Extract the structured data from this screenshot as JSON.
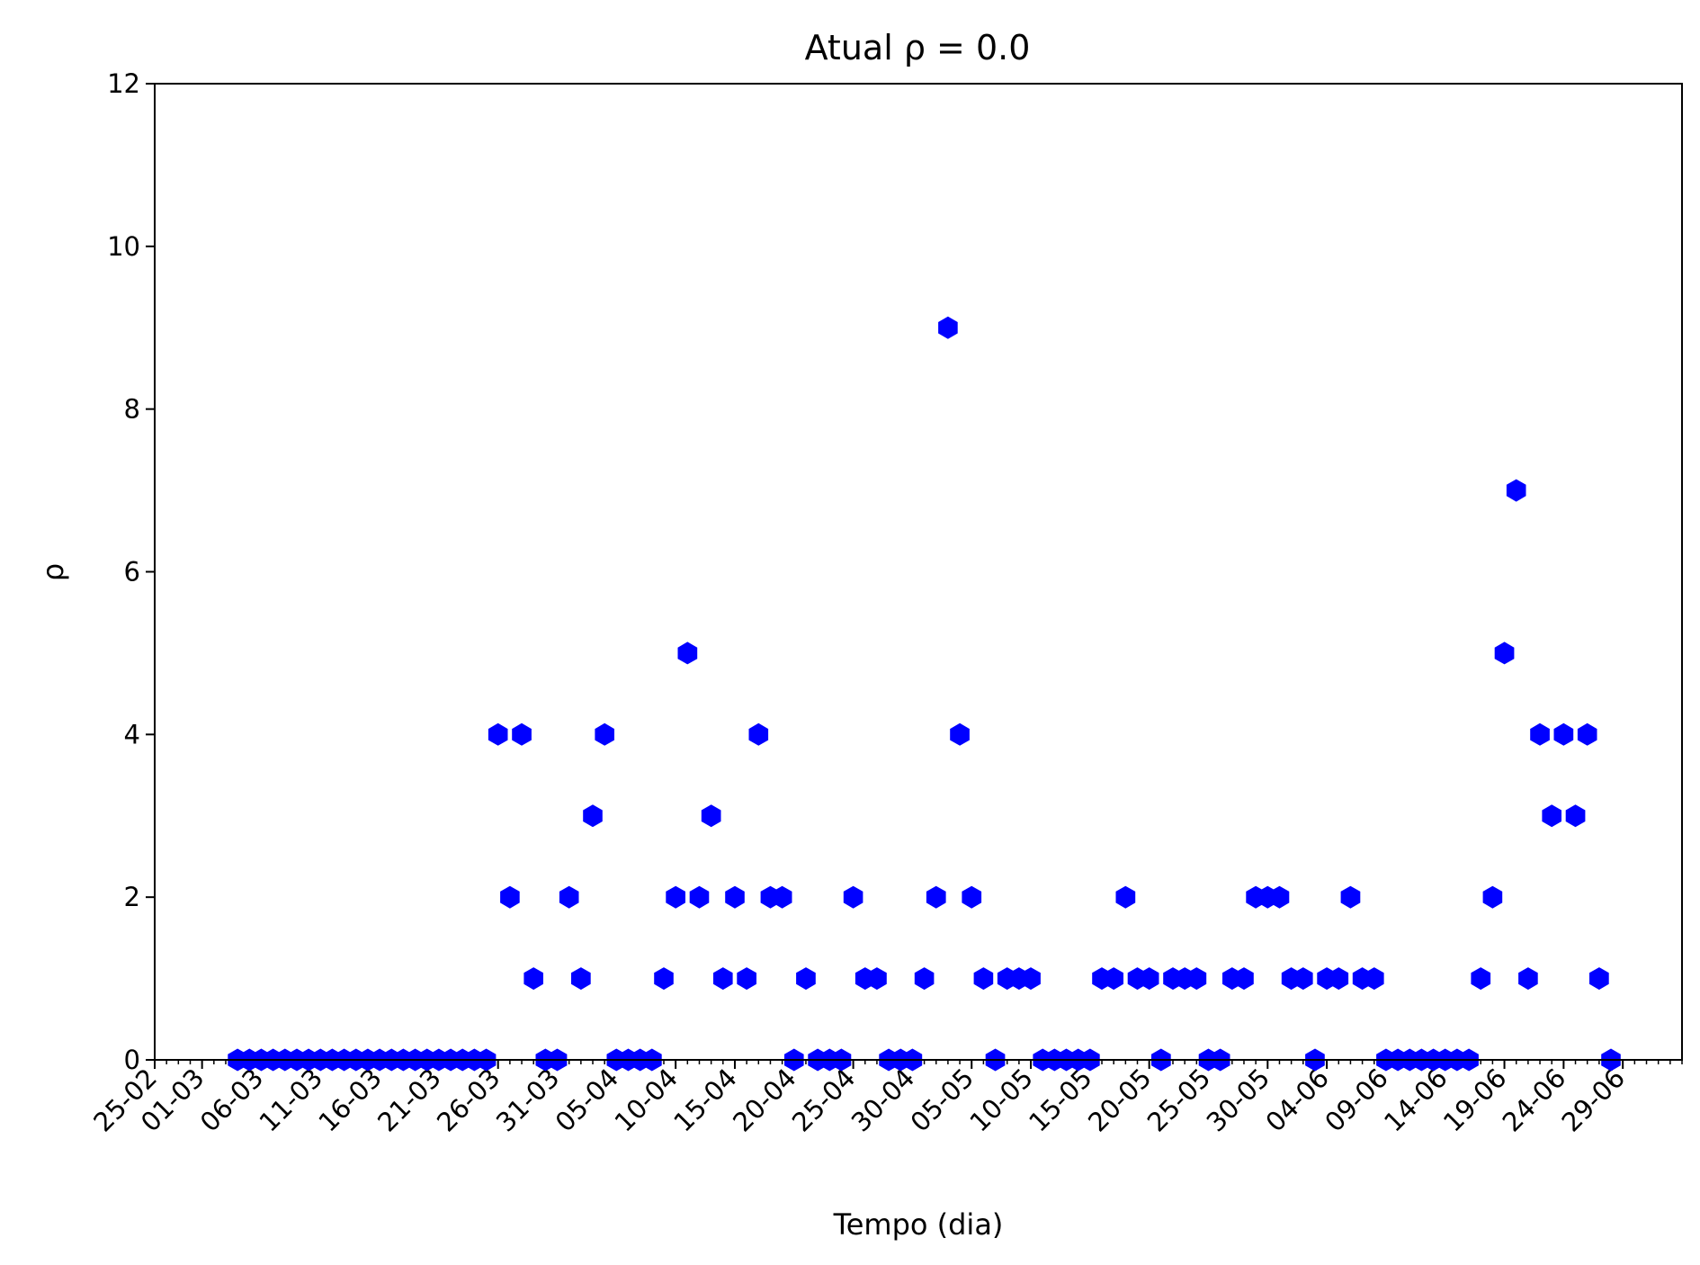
{
  "chart_data": {
    "type": "scatter",
    "title": "Atual ρ = 0.0",
    "xlabel": "Tempo (dia)",
    "ylabel": "ρ",
    "ylim": [
      0,
      12
    ],
    "yticks": [
      0,
      2,
      4,
      6,
      8,
      10,
      12
    ],
    "xlim_days": [
      "25-02",
      "04-07"
    ],
    "xtick_labels": [
      "25-02",
      "01-03",
      "06-03",
      "11-03",
      "16-03",
      "21-03",
      "26-03",
      "31-03",
      "05-04",
      "10-04",
      "15-04",
      "20-04",
      "25-04",
      "30-04",
      "05-05",
      "10-05",
      "15-05",
      "20-05",
      "25-05",
      "30-05",
      "04-06",
      "09-06",
      "14-06",
      "19-06",
      "24-06",
      "29-06"
    ],
    "marker": "hexagon",
    "marker_color": "#0000ff",
    "grid": false,
    "points": [
      {
        "x": "04-03",
        "y": 0
      },
      {
        "x": "05-03",
        "y": 0
      },
      {
        "x": "06-03",
        "y": 0
      },
      {
        "x": "07-03",
        "y": 0
      },
      {
        "x": "08-03",
        "y": 0
      },
      {
        "x": "09-03",
        "y": 0
      },
      {
        "x": "10-03",
        "y": 0
      },
      {
        "x": "11-03",
        "y": 0
      },
      {
        "x": "12-03",
        "y": 0
      },
      {
        "x": "13-03",
        "y": 0
      },
      {
        "x": "14-03",
        "y": 0
      },
      {
        "x": "15-03",
        "y": 0
      },
      {
        "x": "16-03",
        "y": 0
      },
      {
        "x": "17-03",
        "y": 0
      },
      {
        "x": "18-03",
        "y": 0
      },
      {
        "x": "19-03",
        "y": 0
      },
      {
        "x": "20-03",
        "y": 0
      },
      {
        "x": "21-03",
        "y": 0
      },
      {
        "x": "22-03",
        "y": 0
      },
      {
        "x": "23-03",
        "y": 0
      },
      {
        "x": "24-03",
        "y": 0
      },
      {
        "x": "25-03",
        "y": 0
      },
      {
        "x": "26-03",
        "y": 4
      },
      {
        "x": "27-03",
        "y": 2
      },
      {
        "x": "28-03",
        "y": 4
      },
      {
        "x": "29-03",
        "y": 1
      },
      {
        "x": "30-03",
        "y": 0
      },
      {
        "x": "31-03",
        "y": 0
      },
      {
        "x": "01-04",
        "y": 2
      },
      {
        "x": "02-04",
        "y": 1
      },
      {
        "x": "03-04",
        "y": 3
      },
      {
        "x": "04-04",
        "y": 4
      },
      {
        "x": "05-04",
        "y": 0
      },
      {
        "x": "06-04",
        "y": 0
      },
      {
        "x": "07-04",
        "y": 0
      },
      {
        "x": "08-04",
        "y": 0
      },
      {
        "x": "09-04",
        "y": 1
      },
      {
        "x": "10-04",
        "y": 2
      },
      {
        "x": "11-04",
        "y": 5
      },
      {
        "x": "12-04",
        "y": 2
      },
      {
        "x": "13-04",
        "y": 3
      },
      {
        "x": "14-04",
        "y": 1
      },
      {
        "x": "15-04",
        "y": 2
      },
      {
        "x": "16-04",
        "y": 1
      },
      {
        "x": "17-04",
        "y": 4
      },
      {
        "x": "18-04",
        "y": 2
      },
      {
        "x": "19-04",
        "y": 2
      },
      {
        "x": "20-04",
        "y": 0
      },
      {
        "x": "21-04",
        "y": 1
      },
      {
        "x": "22-04",
        "y": 0
      },
      {
        "x": "23-04",
        "y": 0
      },
      {
        "x": "24-04",
        "y": 0
      },
      {
        "x": "25-04",
        "y": 2
      },
      {
        "x": "26-04",
        "y": 1
      },
      {
        "x": "27-04",
        "y": 1
      },
      {
        "x": "28-04",
        "y": 0
      },
      {
        "x": "29-04",
        "y": 0
      },
      {
        "x": "30-04",
        "y": 0
      },
      {
        "x": "01-05",
        "y": 1
      },
      {
        "x": "02-05",
        "y": 2
      },
      {
        "x": "03-05",
        "y": 9
      },
      {
        "x": "04-05",
        "y": 4
      },
      {
        "x": "05-05",
        "y": 2
      },
      {
        "x": "06-05",
        "y": 1
      },
      {
        "x": "07-05",
        "y": 0
      },
      {
        "x": "08-05",
        "y": 1
      },
      {
        "x": "09-05",
        "y": 1
      },
      {
        "x": "10-05",
        "y": 1
      },
      {
        "x": "11-05",
        "y": 0
      },
      {
        "x": "12-05",
        "y": 0
      },
      {
        "x": "13-05",
        "y": 0
      },
      {
        "x": "14-05",
        "y": 0
      },
      {
        "x": "15-05",
        "y": 0
      },
      {
        "x": "16-05",
        "y": 1
      },
      {
        "x": "17-05",
        "y": 1
      },
      {
        "x": "18-05",
        "y": 2
      },
      {
        "x": "19-05",
        "y": 1
      },
      {
        "x": "20-05",
        "y": 1
      },
      {
        "x": "21-05",
        "y": 0
      },
      {
        "x": "22-05",
        "y": 1
      },
      {
        "x": "23-05",
        "y": 1
      },
      {
        "x": "24-05",
        "y": 1
      },
      {
        "x": "25-05",
        "y": 0
      },
      {
        "x": "26-05",
        "y": 0
      },
      {
        "x": "27-05",
        "y": 1
      },
      {
        "x": "28-05",
        "y": 1
      },
      {
        "x": "29-05",
        "y": 2
      },
      {
        "x": "30-05",
        "y": 2
      },
      {
        "x": "31-05",
        "y": 2
      },
      {
        "x": "01-06",
        "y": 1
      },
      {
        "x": "02-06",
        "y": 1
      },
      {
        "x": "03-06",
        "y": 0
      },
      {
        "x": "04-06",
        "y": 1
      },
      {
        "x": "05-06",
        "y": 1
      },
      {
        "x": "06-06",
        "y": 2
      },
      {
        "x": "07-06",
        "y": 1
      },
      {
        "x": "08-06",
        "y": 1
      },
      {
        "x": "09-06",
        "y": 0
      },
      {
        "x": "10-06",
        "y": 0
      },
      {
        "x": "11-06",
        "y": 0
      },
      {
        "x": "12-06",
        "y": 0
      },
      {
        "x": "13-06",
        "y": 0
      },
      {
        "x": "14-06",
        "y": 0
      },
      {
        "x": "15-06",
        "y": 0
      },
      {
        "x": "16-06",
        "y": 0
      },
      {
        "x": "17-06",
        "y": 1
      },
      {
        "x": "18-06",
        "y": 2
      },
      {
        "x": "19-06",
        "y": 5
      },
      {
        "x": "20-06",
        "y": 7
      },
      {
        "x": "21-06",
        "y": 1
      },
      {
        "x": "22-06",
        "y": 4
      },
      {
        "x": "23-06",
        "y": 3
      },
      {
        "x": "24-06",
        "y": 4
      },
      {
        "x": "25-06",
        "y": 3
      },
      {
        "x": "26-06",
        "y": 4
      },
      {
        "x": "27-06",
        "y": 1
      },
      {
        "x": "28-06",
        "y": 0
      }
    ]
  }
}
